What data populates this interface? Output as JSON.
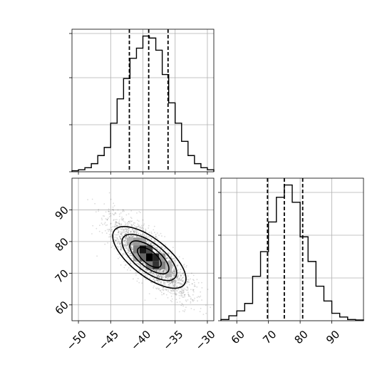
{
  "chart_data": [
    {
      "type": "histogram",
      "panel": "marginal-x",
      "xlim": [
        -51,
        -29
      ],
      "bin_edges": [
        -51,
        -50,
        -49,
        -48,
        -47,
        -46,
        -45,
        -44,
        -43,
        -42,
        -41,
        -40,
        -39,
        -38,
        -37,
        -36,
        -35,
        -34,
        -33,
        -32,
        -31,
        -30,
        -29
      ],
      "values": [
        0.5,
        1,
        2,
        4,
        8,
        12,
        24,
        36,
        46,
        56,
        61,
        67,
        66,
        60,
        48,
        34,
        24,
        15,
        8,
        4,
        2,
        1
      ],
      "quantiles": [
        -42.1,
        -39.1,
        -36.1
      ],
      "xlabel": "",
      "ylabel": "",
      "grid": true
    },
    {
      "type": "histogram",
      "panel": "marginal-y",
      "xlim": [
        55,
        100
      ],
      "bin_edges": [
        55,
        57.5,
        60,
        62.5,
        65,
        67.5,
        70,
        72.5,
        75,
        77.5,
        80,
        82.5,
        85,
        87.5,
        90,
        92.5,
        95,
        97.5,
        100
      ],
      "values": [
        0.5,
        2,
        4,
        7,
        18,
        28,
        40,
        50,
        55,
        48,
        34,
        24,
        14,
        8,
        3,
        1.5,
        0.5,
        0.3
      ],
      "quantiles": [
        69.7,
        75.0,
        80.8
      ],
      "xlabel": "",
      "ylabel": "",
      "grid": true
    },
    {
      "type": "scatter-density",
      "panel": "joint",
      "xlim": [
        -51,
        -29
      ],
      "ylim": [
        55,
        100
      ],
      "center": [
        -39,
        75
      ],
      "correlation": -0.8,
      "std": [
        3,
        6
      ],
      "contour_levels": [
        "0.5-sigma",
        "1-sigma",
        "1.5-sigma",
        "2-sigma"
      ],
      "density_cells": [
        {
          "x": -41,
          "y": 77.5,
          "v": 0.5
        },
        {
          "x": -40,
          "y": 77.5,
          "v": 0.9
        },
        {
          "x": -39,
          "y": 77.5,
          "v": 0.7
        },
        {
          "x": -40,
          "y": 75,
          "v": 0.6
        },
        {
          "x": -39,
          "y": 75,
          "v": 1.0
        },
        {
          "x": -38,
          "y": 75,
          "v": 0.85
        },
        {
          "x": -38,
          "y": 72.5,
          "v": 0.8
        },
        {
          "x": -37,
          "y": 72.5,
          "v": 0.5
        },
        {
          "x": -42,
          "y": 80,
          "v": 0.3
        },
        {
          "x": -41,
          "y": 80,
          "v": 0.4
        },
        {
          "x": -37,
          "y": 75,
          "v": 0.4
        },
        {
          "x": -39,
          "y": 72.5,
          "v": 0.5
        },
        {
          "x": -36,
          "y": 72.5,
          "v": 0.3
        },
        {
          "x": -36,
          "y": 70,
          "v": 0.3
        },
        {
          "x": -40,
          "y": 80,
          "v": 0.35
        },
        {
          "x": -41,
          "y": 75,
          "v": 0.35
        }
      ],
      "grid": true
    }
  ],
  "axes": {
    "joint_x_ticks": [
      {
        "value": -50,
        "label": "−50"
      },
      {
        "value": -45,
        "label": "−45"
      },
      {
        "value": -40,
        "label": "−40"
      },
      {
        "value": -35,
        "label": "−35"
      },
      {
        "value": -30,
        "label": "−30"
      }
    ],
    "joint_y_ticks": [
      {
        "value": 60,
        "label": "60"
      },
      {
        "value": 70,
        "label": "70"
      },
      {
        "value": 80,
        "label": "80"
      },
      {
        "value": 90,
        "label": "90"
      }
    ],
    "marginal_y_x_ticks": [
      {
        "value": 60,
        "label": "60"
      },
      {
        "value": 70,
        "label": "70"
      },
      {
        "value": 80,
        "label": "80"
      },
      {
        "value": 90,
        "label": "90"
      }
    ]
  }
}
